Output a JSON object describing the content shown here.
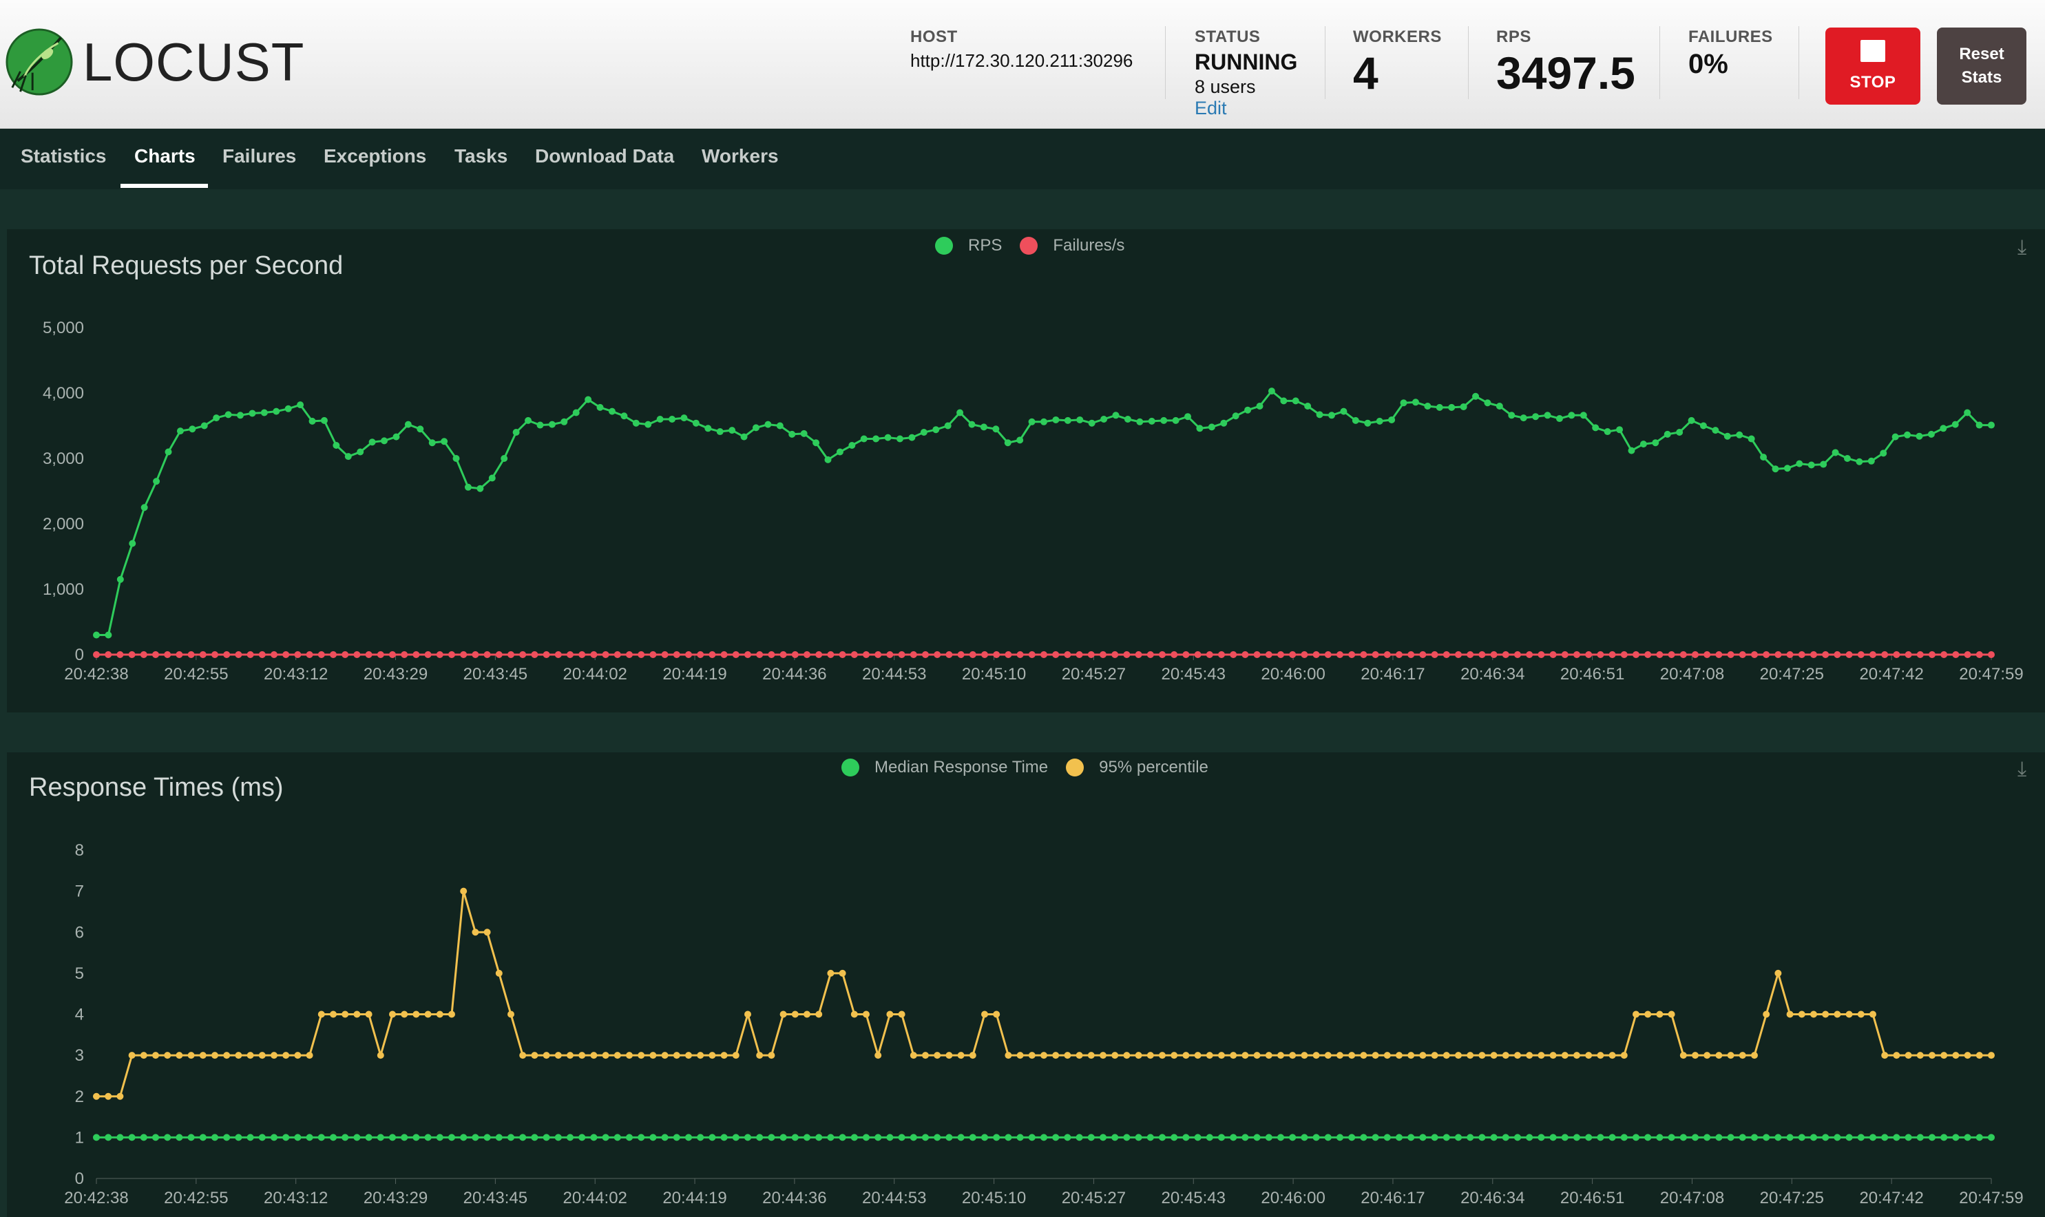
{
  "app": {
    "logo_text": "LOCUST"
  },
  "header": {
    "host_label": "HOST",
    "host_value": "http://172.30.120.211:30296",
    "status_label": "STATUS",
    "status_value": "RUNNING",
    "status_users": "8 users",
    "status_edit": "Edit",
    "workers_label": "WORKERS",
    "workers_value": "4",
    "rps_label": "RPS",
    "rps_value": "3497.5",
    "failures_label": "FAILURES",
    "failures_value": "0%",
    "stop_label": "STOP",
    "reset_label_1": "Reset",
    "reset_label_2": "Stats"
  },
  "tabs": [
    "Statistics",
    "Charts",
    "Failures",
    "Exceptions",
    "Tasks",
    "Download Data",
    "Workers"
  ],
  "active_tab": "Charts",
  "colors": {
    "rps": "#2ecc5b",
    "failures": "#ef4f5c",
    "median": "#2ecc5b",
    "p95": "#f2c14e",
    "stop": "#e01b24",
    "reset": "#4d4242",
    "panel_bg": "#11241f"
  },
  "chart_data": [
    {
      "type": "line",
      "title": "Total Requests per Second",
      "legend": [
        "RPS",
        "Failures/s"
      ],
      "legend_position": "top-center",
      "y_ticks": [
        "0",
        "1,000",
        "2,000",
        "3,000",
        "4,000",
        "5,000"
      ],
      "ylim": [
        0,
        5000
      ],
      "x_tick_labels": [
        "20:42:38",
        "20:42:55",
        "20:43:12",
        "20:43:29",
        "20:43:45",
        "20:44:02",
        "20:44:19",
        "20:44:36",
        "20:44:53",
        "20:45:10",
        "20:45:27",
        "20:45:43",
        "20:46:00",
        "20:46:17",
        "20:46:34",
        "20:46:51",
        "20:47:08",
        "20:47:25",
        "20:47:42",
        "20:47:59"
      ],
      "series": [
        {
          "name": "RPS",
          "values": [
            300,
            300,
            1150,
            1700,
            2250,
            2650,
            3100,
            3420,
            3450,
            3500,
            3620,
            3670,
            3660,
            3690,
            3700,
            3720,
            3760,
            3820,
            3570,
            3580,
            3200,
            3030,
            3100,
            3250,
            3270,
            3330,
            3520,
            3450,
            3240,
            3260,
            3000,
            2560,
            2540,
            2700,
            3000,
            3400,
            3580,
            3510,
            3520,
            3560,
            3700,
            3900,
            3780,
            3720,
            3650,
            3540,
            3520,
            3600,
            3600,
            3620,
            3540,
            3460,
            3410,
            3430,
            3330,
            3470,
            3520,
            3500,
            3370,
            3380,
            3240,
            2980,
            3100,
            3200,
            3300,
            3300,
            3320,
            3300,
            3320,
            3400,
            3440,
            3500,
            3700,
            3520,
            3480,
            3450,
            3240,
            3280,
            3560,
            3560,
            3590,
            3580,
            3590,
            3540,
            3600,
            3660,
            3600,
            3560,
            3570,
            3580,
            3580,
            3640,
            3460,
            3480,
            3540,
            3650,
            3740,
            3800,
            4030,
            3880,
            3880,
            3800,
            3670,
            3660,
            3720,
            3580,
            3540,
            3570,
            3590,
            3850,
            3860,
            3800,
            3780,
            3780,
            3790,
            3950,
            3850,
            3800,
            3660,
            3620,
            3640,
            3660,
            3610,
            3660,
            3660,
            3470,
            3410,
            3440,
            3120,
            3220,
            3240,
            3370,
            3400,
            3580,
            3500,
            3430,
            3340,
            3360,
            3300,
            3020,
            2840,
            2850,
            2920,
            2900,
            2910,
            3090,
            3000,
            2950,
            2960,
            3080,
            3330,
            3360,
            3340,
            3370,
            3460,
            3520,
            3700,
            3510,
            3510
          ]
        },
        {
          "name": "Failures/s",
          "values": "all 0"
        }
      ]
    },
    {
      "type": "line",
      "title": "Response Times (ms)",
      "legend": [
        "Median Response Time",
        "95% percentile"
      ],
      "legend_position": "top-center",
      "y_ticks": [
        "0",
        "1",
        "2",
        "3",
        "4",
        "5",
        "6",
        "7",
        "8"
      ],
      "ylim": [
        0,
        8
      ],
      "x_tick_labels": [
        "20:42:38",
        "20:42:55",
        "20:43:12",
        "20:43:29",
        "20:43:45",
        "20:44:02",
        "20:44:19",
        "20:44:36",
        "20:44:53",
        "20:45:10",
        "20:45:27",
        "20:45:43",
        "20:46:00",
        "20:46:17",
        "20:46:34",
        "20:46:51",
        "20:47:08",
        "20:47:25",
        "20:47:42",
        "20:47:59"
      ],
      "series": [
        {
          "name": "Median Response Time",
          "values": "all 1"
        },
        {
          "name": "95% percentile",
          "values": [
            2,
            2,
            2,
            3,
            3,
            3,
            3,
            3,
            3,
            3,
            3,
            3,
            3,
            3,
            3,
            3,
            3,
            3,
            3,
            4,
            4,
            4,
            4,
            4,
            3,
            4,
            4,
            4,
            4,
            4,
            4,
            7,
            6,
            6,
            5,
            4,
            3,
            3,
            3,
            3,
            3,
            3,
            3,
            3,
            3,
            3,
            3,
            3,
            3,
            3,
            3,
            3,
            3,
            3,
            3,
            4,
            3,
            3,
            4,
            4,
            4,
            4,
            5,
            5,
            4,
            4,
            3,
            4,
            4,
            3,
            3,
            3,
            3,
            3,
            3,
            4,
            4,
            3,
            3,
            3,
            3,
            3,
            3,
            3,
            3,
            3,
            3,
            3,
            3,
            3,
            3,
            3,
            3,
            3,
            3,
            3,
            3,
            3,
            3,
            3,
            3,
            3,
            3,
            3,
            3,
            3,
            3,
            3,
            3,
            3,
            3,
            3,
            3,
            3,
            3,
            3,
            3,
            3,
            3,
            3,
            3,
            3,
            3,
            3,
            3,
            3,
            3,
            3,
            3,
            3,
            4,
            4,
            4,
            4,
            3,
            3,
            3,
            3,
            3,
            3,
            3,
            4,
            5,
            4,
            4,
            4,
            4,
            4,
            4,
            4,
            4,
            3,
            3,
            3,
            3,
            3,
            3,
            3,
            3,
            3,
            3
          ]
        }
      ]
    }
  ]
}
